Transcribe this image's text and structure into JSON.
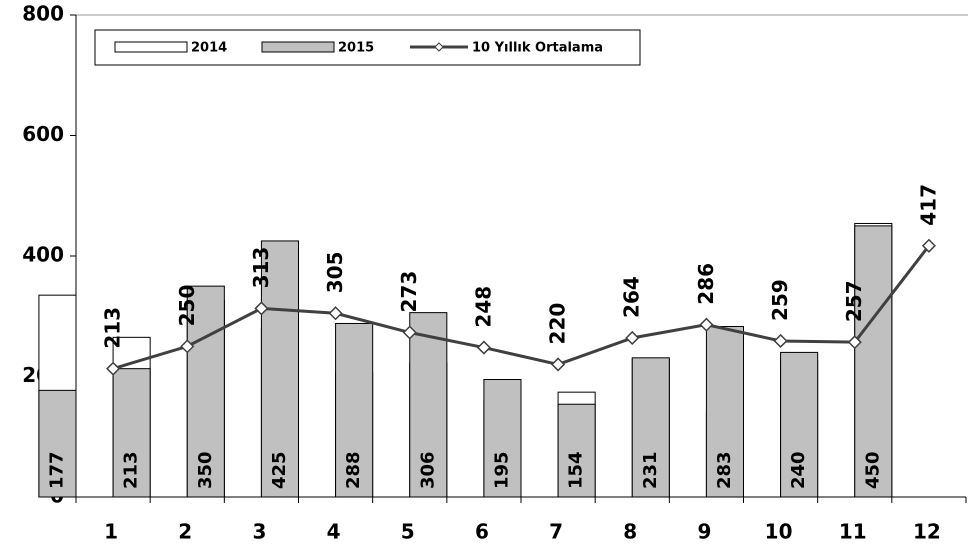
{
  "chart_data": {
    "type": "bar",
    "categories": [
      "1",
      "2",
      "3",
      "4",
      "5",
      "6",
      "7",
      "8",
      "9",
      "10",
      "11",
      "12"
    ],
    "series": [
      {
        "name": "2014",
        "color": "#ffffff",
        "values": [
          335,
          265,
          326,
          280,
          206,
          223,
          161,
          174,
          229,
          140,
          226,
          454
        ]
      },
      {
        "name": "2015",
        "color": "#c0c0c0",
        "values": [
          177,
          213,
          350,
          425,
          288,
          306,
          195,
          154,
          231,
          283,
          240,
          450
        ]
      },
      {
        "name": "10 Yıllık Ortalama",
        "type": "line",
        "color": "#404040",
        "values": [
          213,
          250,
          313,
          305,
          273,
          248,
          220,
          264,
          286,
          259,
          257,
          417
        ]
      }
    ],
    "ylim": [
      0,
      800
    ],
    "yticks": [
      0,
      200,
      400,
      600,
      800
    ],
    "legend": "top-left"
  }
}
